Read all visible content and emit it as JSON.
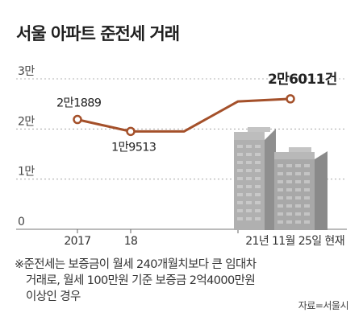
{
  "chart_data": {
    "type": "line",
    "title": "서울 아파트 준전세 거래",
    "y_ticks": [
      {
        "value": 0,
        "label": "0"
      },
      {
        "value": 10000,
        "label": "1만"
      },
      {
        "value": 20000,
        "label": "2만"
      },
      {
        "value": 30000,
        "label": "3만"
      }
    ],
    "ylim": [
      0,
      30000
    ],
    "x_labels": [
      "2017",
      "18",
      "21년 11월 25일 현재"
    ],
    "series": [
      {
        "values": [
          21889,
          19513,
          19500,
          25500,
          26011
        ],
        "color": "#a4502a"
      }
    ],
    "data_labels": [
      "2만1889",
      "1만9513",
      "2만6011건"
    ],
    "grid": "dashed"
  },
  "footnote": {
    "line1": "※준전세는 보증금이 월세 240개월치보다 큰 임대차",
    "line2": "거래로, 월세 100만원 기준 보증금 2억4000만원",
    "line3": "이상인 경우"
  },
  "source": "자료=서울시",
  "colors": {
    "line": "#a4502a",
    "building_front": "#a8a8a8",
    "building_side": "#8a8a8a",
    "window": "#d9d9d9"
  },
  "illustration": {
    "icon": "apartment-buildings-icon"
  }
}
